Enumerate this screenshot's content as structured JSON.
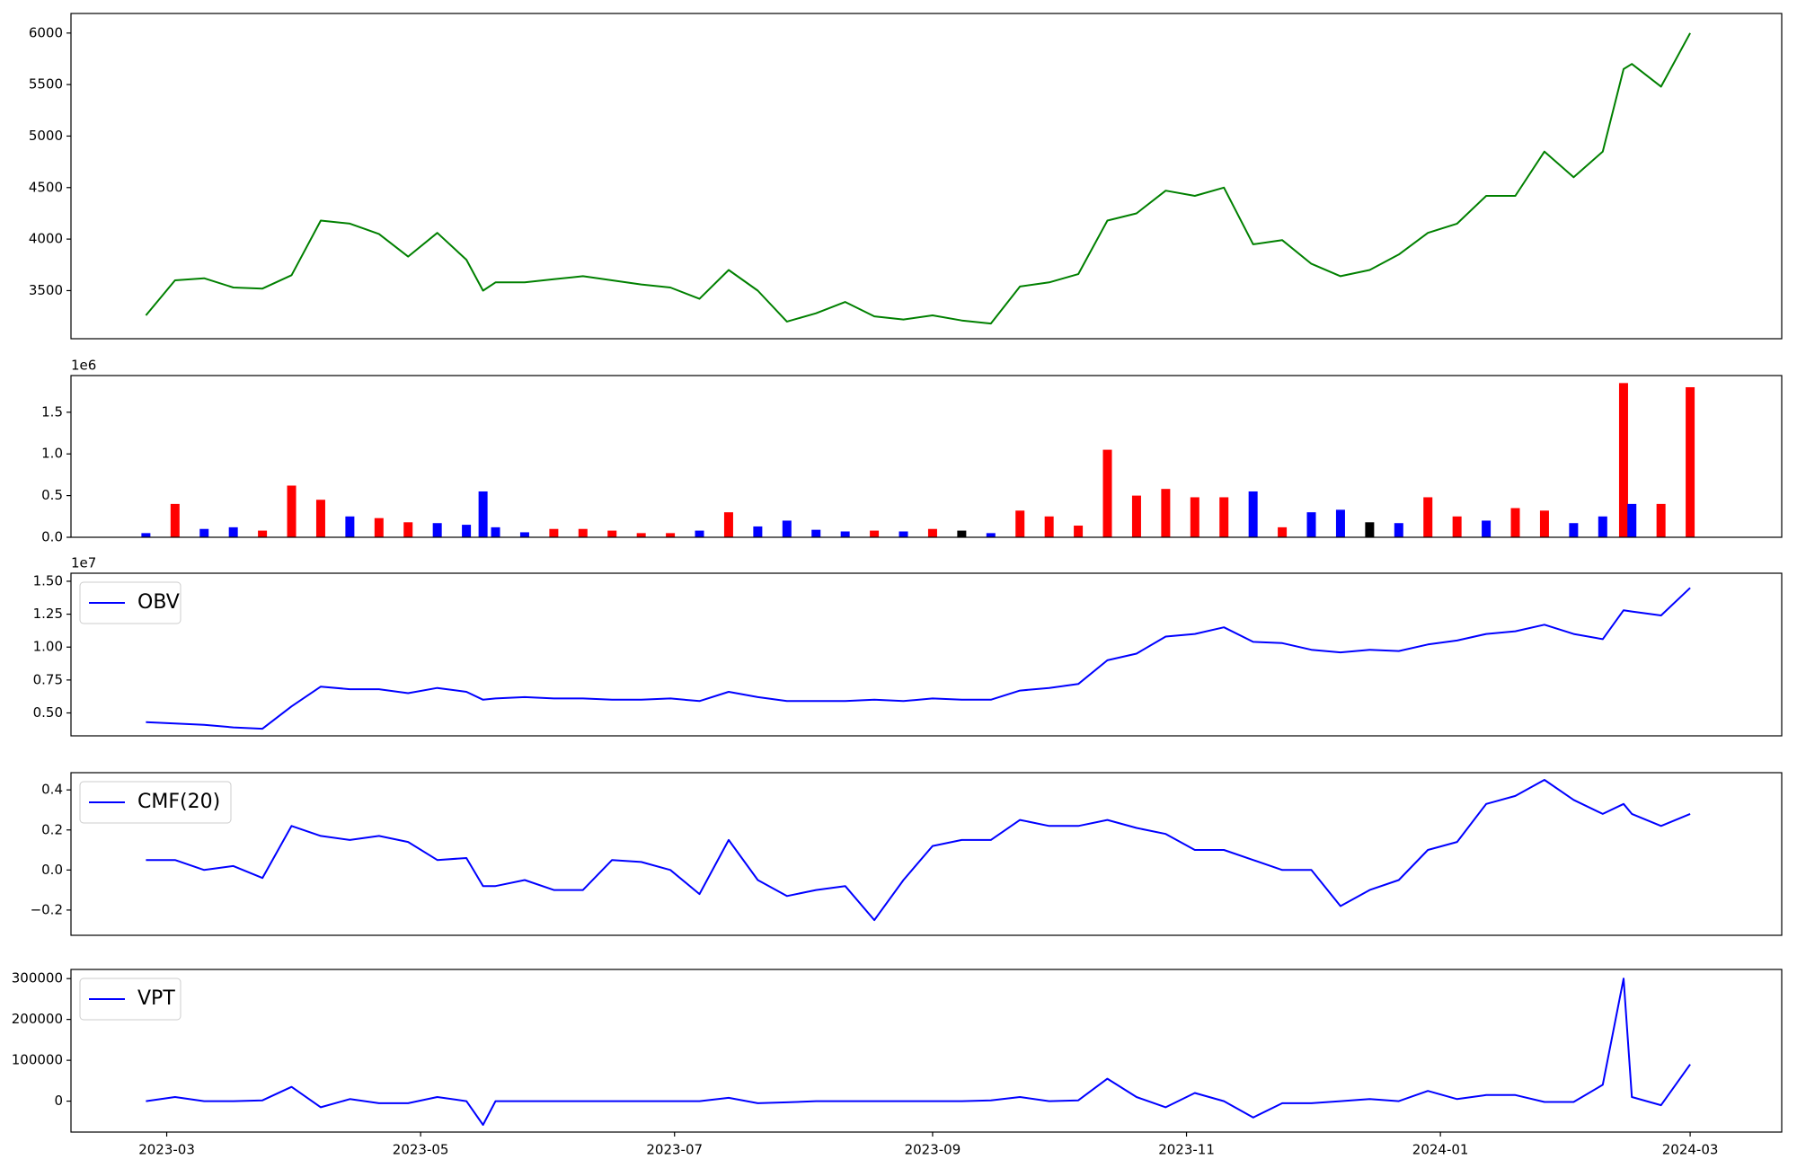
{
  "chart_data": [
    {
      "type": "line",
      "color": "#008000",
      "x": [
        "2023-02-24",
        "2023-03-03",
        "2023-03-10",
        "2023-03-17",
        "2023-03-24",
        "2023-03-31",
        "2023-04-07",
        "2023-04-14",
        "2023-04-21",
        "2023-04-28",
        "2023-05-05",
        "2023-05-12",
        "2023-05-16",
        "2023-05-19",
        "2023-05-26",
        "2023-06-02",
        "2023-06-09",
        "2023-06-16",
        "2023-06-23",
        "2023-06-30",
        "2023-07-07",
        "2023-07-14",
        "2023-07-21",
        "2023-07-28",
        "2023-08-04",
        "2023-08-11",
        "2023-08-18",
        "2023-08-25",
        "2023-09-01",
        "2023-09-08",
        "2023-09-15",
        "2023-09-22",
        "2023-09-29",
        "2023-10-06",
        "2023-10-13",
        "2023-10-20",
        "2023-10-27",
        "2023-11-03",
        "2023-11-10",
        "2023-11-17",
        "2023-11-24",
        "2023-12-01",
        "2023-12-08",
        "2023-12-15",
        "2023-12-22",
        "2023-12-29",
        "2024-01-05",
        "2024-01-12",
        "2024-01-19",
        "2024-01-26",
        "2024-02-02",
        "2024-02-09",
        "2024-02-14",
        "2024-02-16",
        "2024-02-23",
        "2024-03-01"
      ],
      "values": [
        3260,
        3600,
        3620,
        3530,
        3520,
        3650,
        4180,
        4150,
        4050,
        3830,
        4060,
        3800,
        3500,
        3580,
        3580,
        3610,
        3640,
        3600,
        3560,
        3530,
        3420,
        3700,
        3500,
        3200,
        3280,
        3390,
        3250,
        3220,
        3260,
        3210,
        3180,
        3540,
        3580,
        3660,
        4180,
        4250,
        4470,
        4420,
        4500,
        3950,
        3990,
        3760,
        3640,
        3700,
        3850,
        4060,
        4150,
        4420,
        4420,
        4850,
        4600,
        4850,
        5650,
        5700,
        5480,
        6000
      ],
      "xlim": [
        "2023-02-06",
        "2024-03-23"
      ],
      "ylim": [
        3033,
        6190
      ],
      "yticks": [
        3500,
        4000,
        4500,
        5000,
        5500,
        6000
      ]
    },
    {
      "type": "bar",
      "offset_label": "1e6",
      "x": [
        "2023-02-24",
        "2023-03-03",
        "2023-03-10",
        "2023-03-17",
        "2023-03-24",
        "2023-03-31",
        "2023-04-07",
        "2023-04-14",
        "2023-04-21",
        "2023-04-28",
        "2023-05-05",
        "2023-05-12",
        "2023-05-16",
        "2023-05-19",
        "2023-05-26",
        "2023-06-02",
        "2023-06-09",
        "2023-06-16",
        "2023-06-23",
        "2023-06-30",
        "2023-07-07",
        "2023-07-14",
        "2023-07-21",
        "2023-07-28",
        "2023-08-04",
        "2023-08-11",
        "2023-08-18",
        "2023-08-25",
        "2023-09-01",
        "2023-09-08",
        "2023-09-15",
        "2023-09-22",
        "2023-09-29",
        "2023-10-06",
        "2023-10-13",
        "2023-10-20",
        "2023-10-27",
        "2023-11-03",
        "2023-11-10",
        "2023-11-17",
        "2023-11-24",
        "2023-12-01",
        "2023-12-08",
        "2023-12-15",
        "2023-12-22",
        "2023-12-29",
        "2024-01-05",
        "2024-01-12",
        "2024-01-19",
        "2024-01-26",
        "2024-02-02",
        "2024-02-09",
        "2024-02-14",
        "2024-02-16",
        "2024-02-23",
        "2024-03-01"
      ],
      "values": [
        50000,
        400000,
        100000,
        120000,
        80000,
        620000,
        450000,
        250000,
        230000,
        180000,
        170000,
        150000,
        550000,
        120000,
        60000,
        100000,
        100000,
        80000,
        50000,
        50000,
        80000,
        300000,
        130000,
        200000,
        90000,
        70000,
        80000,
        70000,
        100000,
        80000,
        50000,
        320000,
        250000,
        140000,
        1050000,
        500000,
        580000,
        480000,
        480000,
        550000,
        120000,
        300000,
        330000,
        180000,
        170000,
        480000,
        250000,
        200000,
        350000,
        320000,
        170000,
        250000,
        1850000,
        400000,
        400000,
        1800000
      ],
      "colors": [
        "#0000ff",
        "#ff0000",
        "#0000ff",
        "#0000ff",
        "#ff0000",
        "#ff0000",
        "#ff0000",
        "#0000ff",
        "#ff0000",
        "#ff0000",
        "#0000ff",
        "#0000ff",
        "#0000ff",
        "#0000ff",
        "#0000ff",
        "#ff0000",
        "#ff0000",
        "#ff0000",
        "#ff0000",
        "#ff0000",
        "#0000ff",
        "#ff0000",
        "#0000ff",
        "#0000ff",
        "#0000ff",
        "#0000ff",
        "#ff0000",
        "#0000ff",
        "#ff0000",
        "#000000",
        "#0000ff",
        "#ff0000",
        "#ff0000",
        "#ff0000",
        "#ff0000",
        "#ff0000",
        "#ff0000",
        "#ff0000",
        "#ff0000",
        "#0000ff",
        "#ff0000",
        "#0000ff",
        "#0000ff",
        "#000000",
        "#0000ff",
        "#ff0000",
        "#ff0000",
        "#0000ff",
        "#ff0000",
        "#ff0000",
        "#0000ff",
        "#0000ff",
        "#ff0000",
        "#0000ff",
        "#ff0000",
        "#ff0000"
      ],
      "xlim": [
        "2023-02-06",
        "2024-03-23"
      ],
      "ylim": [
        0,
        1940000
      ],
      "yticks": [
        {
          "value": 0,
          "label": "0.0"
        },
        {
          "value": 500000,
          "label": "0.5"
        },
        {
          "value": 1000000,
          "label": "1.0"
        },
        {
          "value": 1500000,
          "label": "1.5"
        }
      ]
    },
    {
      "type": "line",
      "offset_label": "1e7",
      "legend": "upper left",
      "x": [
        "2023-02-24",
        "2023-03-03",
        "2023-03-10",
        "2023-03-17",
        "2023-03-24",
        "2023-03-31",
        "2023-04-07",
        "2023-04-14",
        "2023-04-21",
        "2023-04-28",
        "2023-05-05",
        "2023-05-12",
        "2023-05-16",
        "2023-05-19",
        "2023-05-26",
        "2023-06-02",
        "2023-06-09",
        "2023-06-16",
        "2023-06-23",
        "2023-06-30",
        "2023-07-07",
        "2023-07-14",
        "2023-07-21",
        "2023-07-28",
        "2023-08-04",
        "2023-08-11",
        "2023-08-18",
        "2023-08-25",
        "2023-09-01",
        "2023-09-08",
        "2023-09-15",
        "2023-09-22",
        "2023-09-29",
        "2023-10-06",
        "2023-10-13",
        "2023-10-20",
        "2023-10-27",
        "2023-11-03",
        "2023-11-10",
        "2023-11-17",
        "2023-11-24",
        "2023-12-01",
        "2023-12-08",
        "2023-12-15",
        "2023-12-22",
        "2023-12-29",
        "2024-01-05",
        "2024-01-12",
        "2024-01-19",
        "2024-01-26",
        "2024-02-02",
        "2024-02-09",
        "2024-02-14",
        "2024-02-16",
        "2024-02-23",
        "2024-03-01"
      ],
      "series": [
        {
          "name": "OBV",
          "color": "#0000ff",
          "values": [
            4300000,
            4200000,
            4100000,
            3900000,
            3800000,
            5500000,
            7000000,
            6800000,
            6800000,
            6500000,
            6900000,
            6600000,
            6000000,
            6100000,
            6200000,
            6100000,
            6100000,
            6000000,
            6000000,
            6100000,
            5900000,
            6600000,
            6200000,
            5900000,
            5900000,
            5900000,
            6000000,
            5900000,
            6100000,
            6000000,
            6000000,
            6700000,
            6900000,
            7200000,
            9000000,
            9500000,
            10800000,
            11000000,
            11500000,
            10400000,
            10300000,
            9800000,
            9600000,
            9800000,
            9700000,
            10200000,
            10500000,
            11000000,
            11200000,
            11700000,
            11000000,
            10600000,
            12800000,
            12700000,
            12400000,
            14500000
          ]
        }
      ],
      "xlim": [
        "2023-02-06",
        "2024-03-23"
      ],
      "ylim": [
        3260000,
        15610000
      ],
      "yticks": [
        {
          "value": 5000000,
          "label": "0.50"
        },
        {
          "value": 7500000,
          "label": "0.75"
        },
        {
          "value": 10000000,
          "label": "1.00"
        },
        {
          "value": 12500000,
          "label": "1.25"
        },
        {
          "value": 15000000,
          "label": "1.50"
        }
      ]
    },
    {
      "type": "line",
      "legend": "upper left",
      "x": [
        "2023-02-24",
        "2023-03-03",
        "2023-03-10",
        "2023-03-17",
        "2023-03-24",
        "2023-03-31",
        "2023-04-07",
        "2023-04-14",
        "2023-04-21",
        "2023-04-28",
        "2023-05-05",
        "2023-05-12",
        "2023-05-16",
        "2023-05-19",
        "2023-05-26",
        "2023-06-02",
        "2023-06-09",
        "2023-06-16",
        "2023-06-23",
        "2023-06-30",
        "2023-07-07",
        "2023-07-14",
        "2023-07-21",
        "2023-07-28",
        "2023-08-04",
        "2023-08-11",
        "2023-08-18",
        "2023-08-25",
        "2023-09-01",
        "2023-09-08",
        "2023-09-15",
        "2023-09-22",
        "2023-09-29",
        "2023-10-06",
        "2023-10-13",
        "2023-10-20",
        "2023-10-27",
        "2023-11-03",
        "2023-11-10",
        "2023-11-17",
        "2023-11-24",
        "2023-12-01",
        "2023-12-08",
        "2023-12-15",
        "2023-12-22",
        "2023-12-29",
        "2024-01-05",
        "2024-01-12",
        "2024-01-19",
        "2024-01-26",
        "2024-02-02",
        "2024-02-09",
        "2024-02-14",
        "2024-02-16",
        "2024-02-23",
        "2024-03-01"
      ],
      "series": [
        {
          "name": "CMF(20)",
          "color": "#0000ff",
          "values": [
            0.05,
            0.05,
            0.0,
            0.02,
            -0.04,
            0.22,
            0.17,
            0.15,
            0.17,
            0.14,
            0.05,
            0.06,
            -0.08,
            -0.08,
            -0.05,
            -0.1,
            -0.1,
            0.05,
            0.04,
            0.0,
            -0.12,
            0.15,
            -0.05,
            -0.13,
            -0.1,
            -0.08,
            -0.25,
            -0.05,
            0.12,
            0.15,
            0.15,
            0.25,
            0.22,
            0.22,
            0.25,
            0.21,
            0.18,
            0.1,
            0.1,
            0.05,
            0.0,
            0.0,
            -0.18,
            -0.1,
            -0.05,
            0.1,
            0.14,
            0.33,
            0.37,
            0.45,
            0.35,
            0.28,
            0.33,
            0.28,
            0.22,
            0.28
          ]
        }
      ],
      "xlim": [
        "2023-02-06",
        "2024-03-23"
      ],
      "ylim": [
        -0.326,
        0.486
      ],
      "yticks": [
        {
          "value": -0.2,
          "label": "−0.2"
        },
        {
          "value": 0,
          "label": "0.0"
        },
        {
          "value": 0.2,
          "label": "0.2"
        },
        {
          "value": 0.4,
          "label": "0.4"
        }
      ]
    },
    {
      "type": "line",
      "legend": "upper left",
      "x": [
        "2023-02-24",
        "2023-03-03",
        "2023-03-10",
        "2023-03-17",
        "2023-03-24",
        "2023-03-31",
        "2023-04-07",
        "2023-04-14",
        "2023-04-21",
        "2023-04-28",
        "2023-05-05",
        "2023-05-12",
        "2023-05-16",
        "2023-05-19",
        "2023-05-26",
        "2023-06-02",
        "2023-06-09",
        "2023-06-16",
        "2023-06-23",
        "2023-06-30",
        "2023-07-07",
        "2023-07-14",
        "2023-07-21",
        "2023-07-28",
        "2023-08-04",
        "2023-08-11",
        "2023-08-18",
        "2023-08-25",
        "2023-09-01",
        "2023-09-08",
        "2023-09-15",
        "2023-09-22",
        "2023-09-29",
        "2023-10-06",
        "2023-10-13",
        "2023-10-20",
        "2023-10-27",
        "2023-11-03",
        "2023-11-10",
        "2023-11-17",
        "2023-11-24",
        "2023-12-01",
        "2023-12-08",
        "2023-12-15",
        "2023-12-22",
        "2023-12-29",
        "2024-01-05",
        "2024-01-12",
        "2024-01-19",
        "2024-01-26",
        "2024-02-02",
        "2024-02-09",
        "2024-02-14",
        "2024-02-16",
        "2024-02-23",
        "2024-03-01"
      ],
      "series": [
        {
          "name": "VPT",
          "color": "#0000ff",
          "values": [
            0,
            10000,
            0,
            0,
            2000,
            35000,
            -15000,
            5000,
            -5000,
            -5000,
            10000,
            0,
            -58000,
            0,
            0,
            0,
            0,
            0,
            0,
            0,
            0,
            8000,
            -5000,
            -3000,
            0,
            0,
            0,
            0,
            0,
            0,
            2000,
            10000,
            0,
            2000,
            55000,
            10000,
            -15000,
            20000,
            0,
            -40000,
            -5000,
            -5000,
            0,
            5000,
            0,
            25000,
            5000,
            15000,
            15000,
            -2000,
            -2000,
            40000,
            300000,
            10000,
            -10000,
            90000
          ]
        }
      ],
      "xlim": [
        "2023-02-06",
        "2024-03-23"
      ],
      "ylim": [
        -75700,
        322400
      ],
      "yticks": [
        0,
        100000,
        200000,
        300000
      ],
      "xticks": [
        {
          "value": "2023-03-01",
          "label": "2023-03"
        },
        {
          "value": "2023-05-01",
          "label": "2023-05"
        },
        {
          "value": "2023-07-01",
          "label": "2023-07"
        },
        {
          "value": "2023-09-01",
          "label": "2023-09"
        },
        {
          "value": "2023-11-01",
          "label": "2023-11"
        },
        {
          "value": "2024-01-01",
          "label": "2024-01"
        },
        {
          "value": "2024-03-01",
          "label": "2024-03"
        }
      ]
    }
  ]
}
